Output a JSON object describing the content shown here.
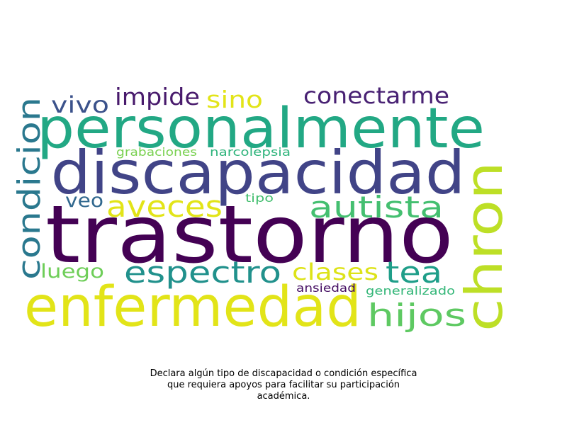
{
  "wordcloud": {
    "words": [
      {
        "text": "personalmente",
        "color": "#22a884"
      },
      {
        "text": "discapacidad",
        "color": "#414487"
      },
      {
        "text": "trastorno",
        "color": "#440154"
      },
      {
        "text": "enfermedad",
        "color": "#e2e418"
      },
      {
        "text": "chron",
        "color": "#bddf26"
      },
      {
        "text": "condicion",
        "color": "#2a788e"
      },
      {
        "text": "impide",
        "color": "#481a6c"
      },
      {
        "text": "sino",
        "color": "#e2e418"
      },
      {
        "text": "conectarme",
        "color": "#482173"
      },
      {
        "text": "vivo",
        "color": "#3b528b"
      },
      {
        "text": "grabaciones",
        "color": "#7ad151"
      },
      {
        "text": "narcolepsia",
        "color": "#2fb47c"
      },
      {
        "text": "veo",
        "color": "#31688e"
      },
      {
        "text": "aveces",
        "color": "#e2e418"
      },
      {
        "text": "tipo",
        "color": "#44bf70"
      },
      {
        "text": "autista",
        "color": "#44bf70"
      },
      {
        "text": "luego",
        "color": "#6ece58"
      },
      {
        "text": "espectro",
        "color": "#21918c"
      },
      {
        "text": "clases",
        "color": "#dde318"
      },
      {
        "text": "tea",
        "color": "#1f9e89"
      },
      {
        "text": "ansiedad",
        "color": "#471164"
      },
      {
        "text": "generalizado",
        "color": "#35b779"
      },
      {
        "text": "hijos",
        "color": "#5ec962"
      }
    ]
  },
  "caption": {
    "line1": "Declara algún tipo de discapacidad o condición específica",
    "line2": "que requiera apoyos para facilitar su participación",
    "line3": "académica."
  }
}
